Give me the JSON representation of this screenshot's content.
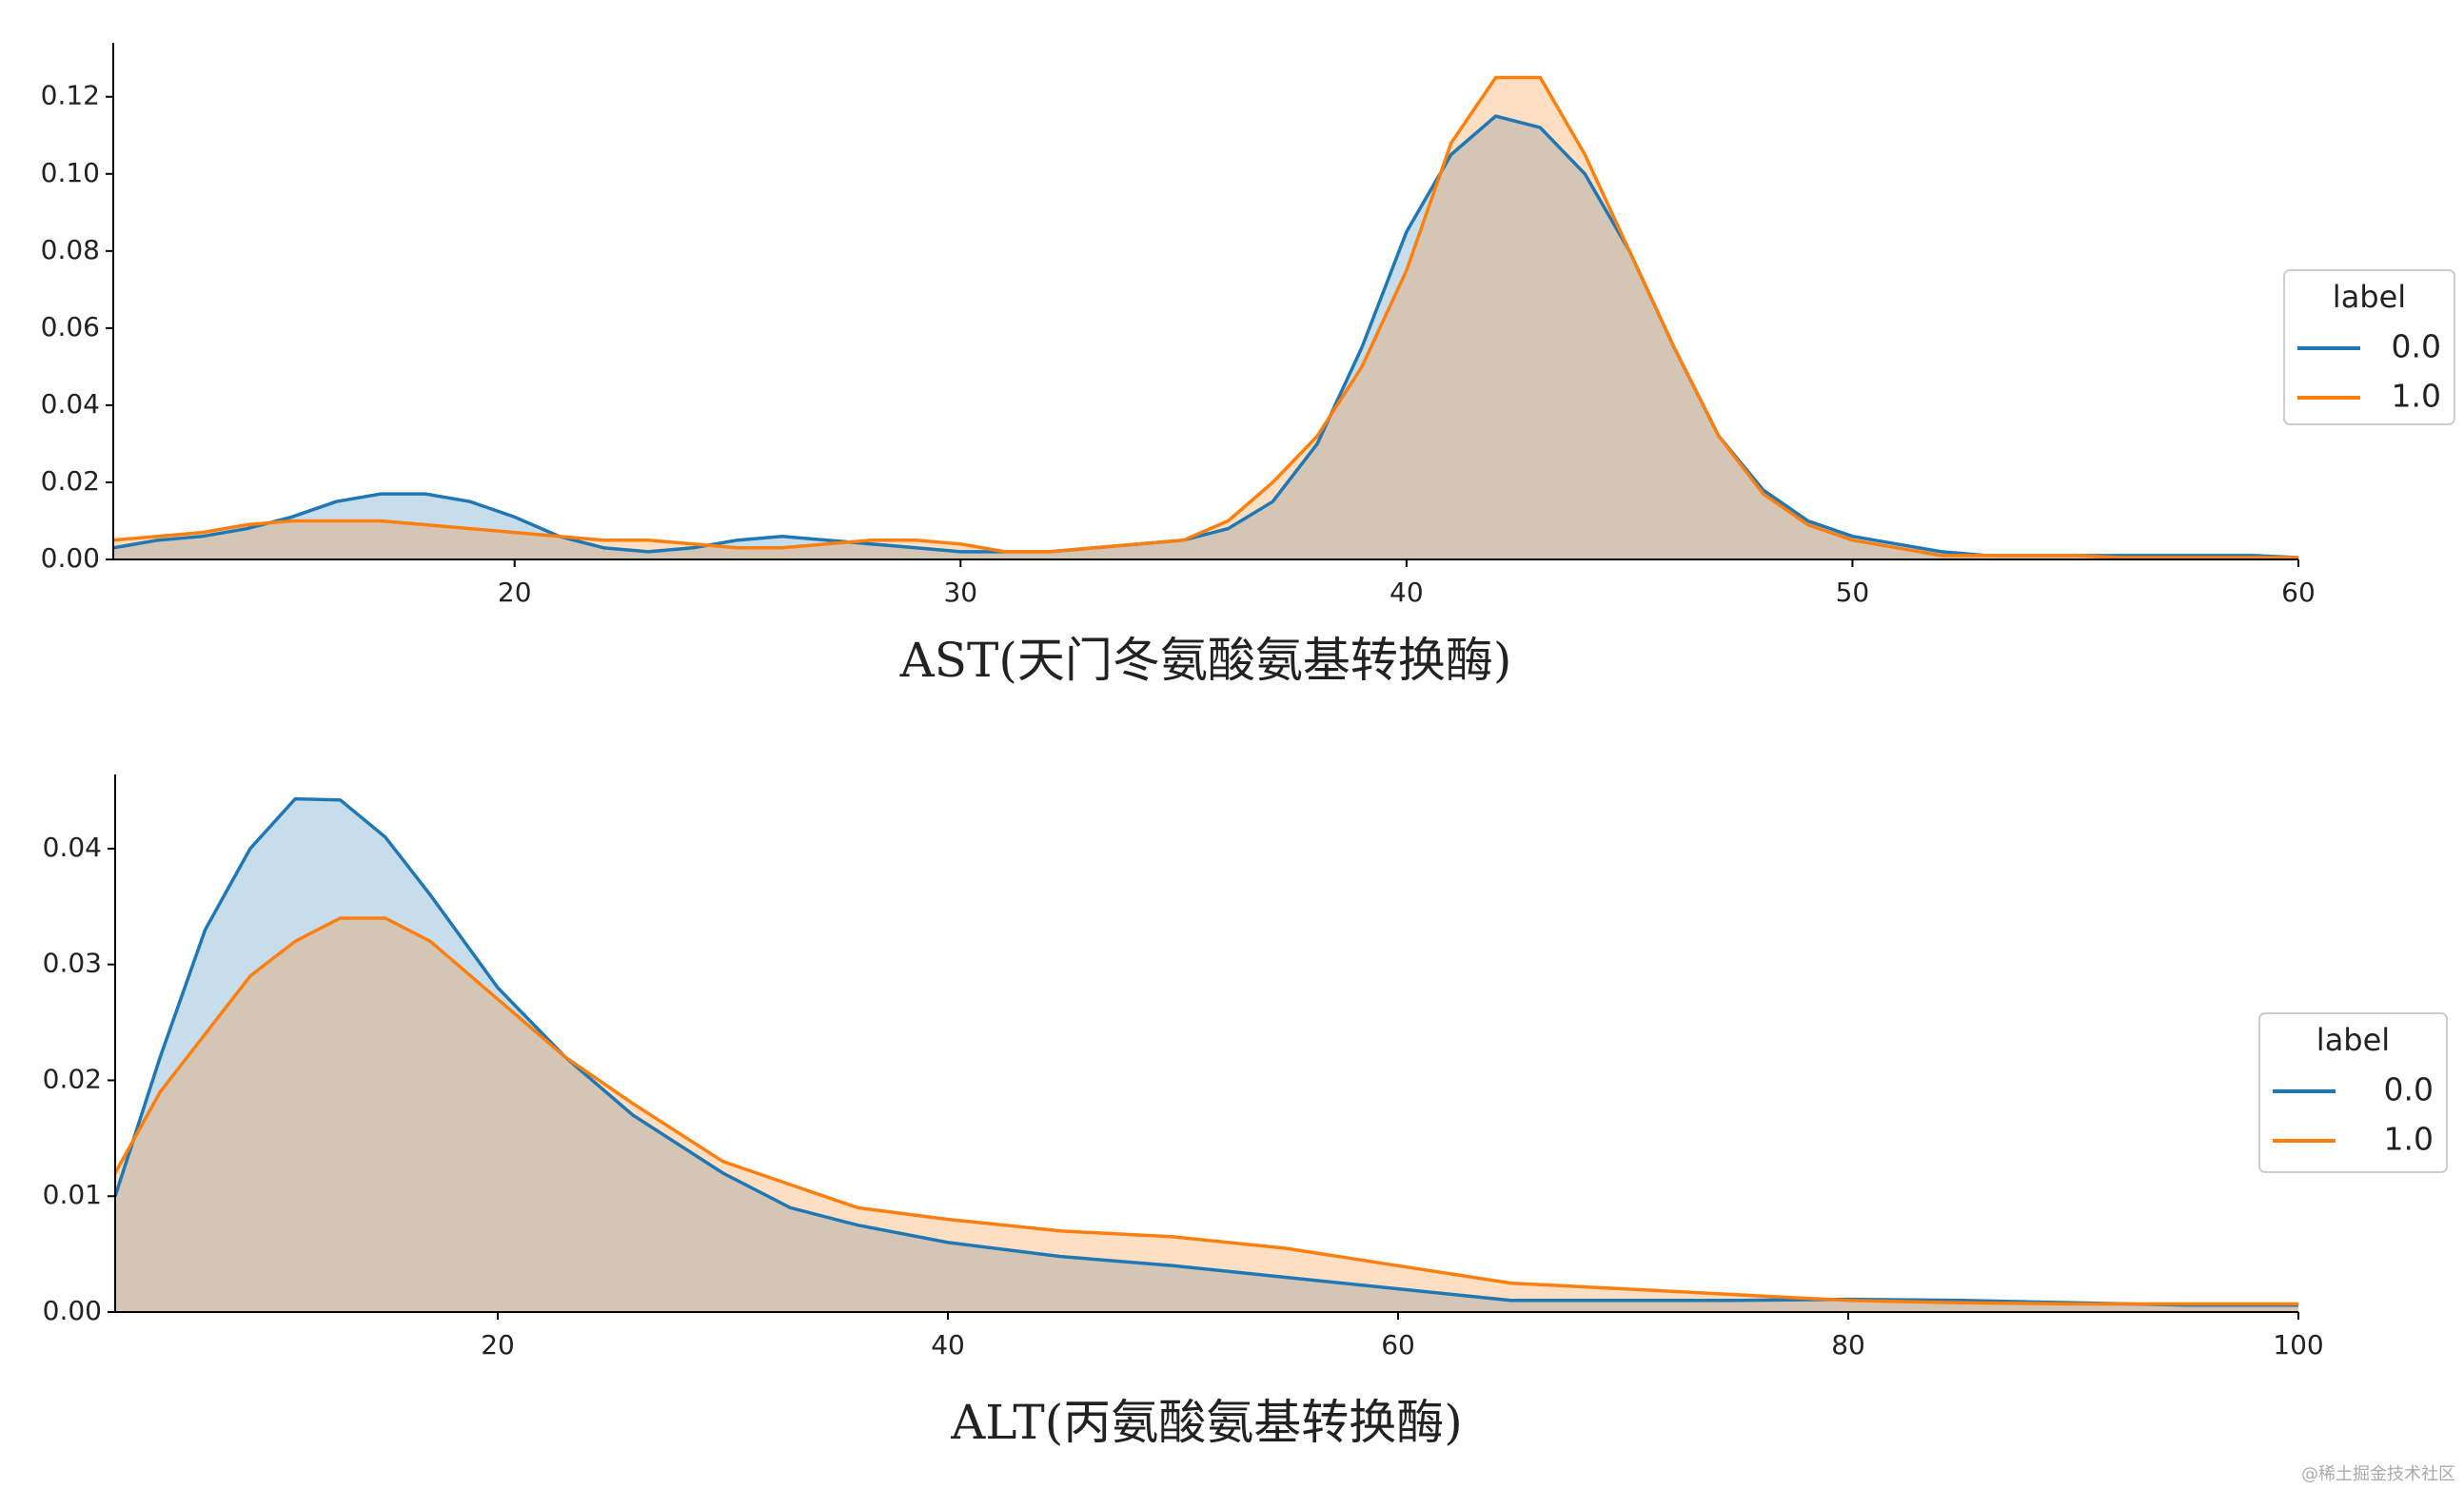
{
  "chart_data": [
    {
      "type": "area",
      "xlabel": "AST(天门冬氨酸氨基转换酶)",
      "legend_title": "label",
      "legend": "right",
      "xlim": [
        11,
        60
      ],
      "ylim": [
        0,
        0.134
      ],
      "xticks": [
        20,
        30,
        40,
        50,
        60
      ],
      "yticks": [
        {
          "value": 0,
          "label": "0.00"
        },
        {
          "value": 0.02,
          "label": "0.02"
        },
        {
          "value": 0.04,
          "label": "0.04"
        },
        {
          "value": 0.06,
          "label": "0.06"
        },
        {
          "value": 0.08,
          "label": "0.08"
        },
        {
          "value": 0.1,
          "label": "0.10"
        },
        {
          "value": 0.12,
          "label": "0.12"
        }
      ],
      "x": [
        11,
        12,
        13,
        14,
        15,
        16,
        17,
        18,
        19,
        20,
        21,
        22,
        23,
        24,
        25,
        26,
        27,
        28,
        29,
        30,
        31,
        32,
        33,
        34,
        35,
        36,
        37,
        38,
        39,
        40,
        41,
        42,
        43,
        44,
        45,
        46,
        47,
        48,
        49,
        50,
        51,
        52,
        53,
        54,
        55,
        56,
        57,
        58,
        59,
        60
      ],
      "series": [
        {
          "name": "0.0",
          "color": "#1f77b4",
          "values": [
            0.003,
            0.005,
            0.006,
            0.008,
            0.011,
            0.015,
            0.017,
            0.017,
            0.015,
            0.011,
            0.006,
            0.003,
            0.002,
            0.003,
            0.005,
            0.006,
            0.005,
            0.004,
            0.003,
            0.002,
            0.002,
            0.002,
            0.003,
            0.004,
            0.005,
            0.008,
            0.015,
            0.03,
            0.055,
            0.085,
            0.105,
            0.115,
            0.112,
            0.1,
            0.08,
            0.055,
            0.032,
            0.018,
            0.01,
            0.006,
            0.004,
            0.002,
            0.001,
            0.001,
            0.001,
            0.001,
            0.001,
            0.001,
            0.001,
            0.0005
          ]
        },
        {
          "name": "1.0",
          "color": "#ff7f0e",
          "values": [
            0.005,
            0.006,
            0.007,
            0.009,
            0.01,
            0.01,
            0.01,
            0.009,
            0.008,
            0.007,
            0.006,
            0.005,
            0.005,
            0.004,
            0.003,
            0.003,
            0.004,
            0.005,
            0.005,
            0.004,
            0.002,
            0.002,
            0.003,
            0.004,
            0.005,
            0.01,
            0.02,
            0.032,
            0.05,
            0.075,
            0.108,
            0.125,
            0.125,
            0.105,
            0.08,
            0.055,
            0.032,
            0.017,
            0.009,
            0.005,
            0.003,
            0.001,
            0.001,
            0.001,
            0.001,
            0.0005,
            0.0005,
            0.0005,
            0.0005,
            0.0005
          ]
        }
      ]
    },
    {
      "type": "area",
      "xlabel": "ALT(丙氨酸氨基转换酶)",
      "legend_title": "label",
      "legend": "right",
      "xlim": [
        3,
        100
      ],
      "ylim": [
        0,
        0.0464
      ],
      "xticks": [
        20,
        40,
        60,
        80,
        100
      ],
      "yticks": [
        {
          "value": 0,
          "label": "0.00"
        },
        {
          "value": 0.01,
          "label": "0.01"
        },
        {
          "value": 0.02,
          "label": "0.02"
        },
        {
          "value": 0.03,
          "label": "0.03"
        },
        {
          "value": 0.04,
          "label": "0.04"
        }
      ],
      "x": [
        3,
        5,
        7,
        9,
        11,
        13,
        15,
        17,
        20,
        23,
        26,
        30,
        33,
        36,
        40,
        45,
        50,
        55,
        60,
        65,
        70,
        75,
        80,
        85,
        90,
        95,
        100
      ],
      "series": [
        {
          "name": "0.0",
          "color": "#1f77b4",
          "values": [
            0.01,
            0.022,
            0.033,
            0.04,
            0.0443,
            0.0442,
            0.041,
            0.036,
            0.028,
            0.022,
            0.017,
            0.012,
            0.009,
            0.0075,
            0.006,
            0.0048,
            0.004,
            0.003,
            0.002,
            0.001,
            0.001,
            0.001,
            0.0011,
            0.001,
            0.0008,
            0.0006,
            0.0006
          ]
        },
        {
          "name": "1.0",
          "color": "#ff7f0e",
          "values": [
            0.012,
            0.019,
            0.024,
            0.029,
            0.032,
            0.034,
            0.034,
            0.032,
            0.027,
            0.022,
            0.018,
            0.013,
            0.011,
            0.009,
            0.008,
            0.007,
            0.0065,
            0.0055,
            0.004,
            0.0025,
            0.002,
            0.0015,
            0.001,
            0.0008,
            0.0007,
            0.0007,
            0.0007
          ]
        }
      ]
    }
  ],
  "watermark": "@稀土掘金技术社区"
}
